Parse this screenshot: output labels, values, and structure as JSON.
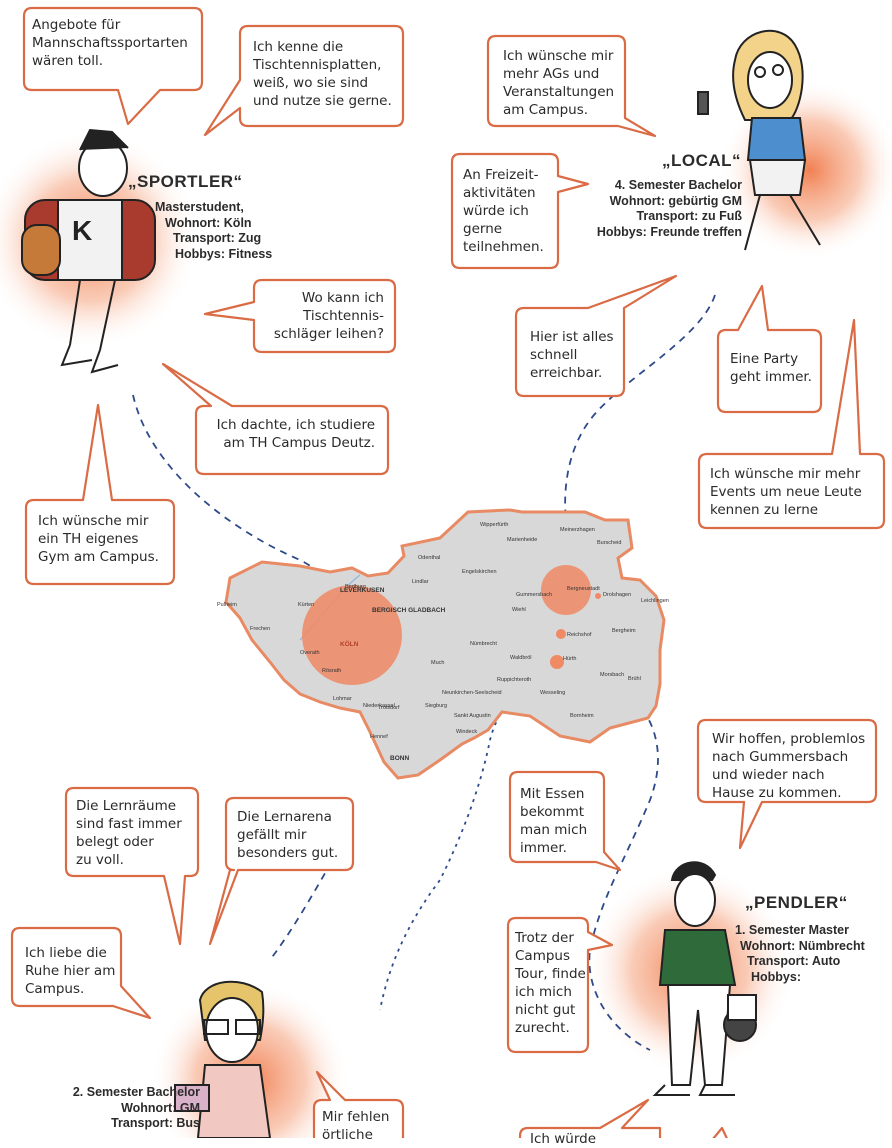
{
  "colors": {
    "bubble_border": "#d96b45",
    "glow": "#f07a4a",
    "map_fill": "#d8d8d8",
    "map_border": "#e88a63",
    "dashes": "#2e4a8a",
    "hotspot": "#f08a65"
  },
  "personas": {
    "sportler": {
      "name": "„SPORTLER“",
      "info": [
        "Masterstudent,",
        "Wohnort: Köln",
        "Transport: Zug",
        "Hobbys: Fitness"
      ]
    },
    "local": {
      "name": "„LOCAL“",
      "info": [
        "4. Semester Bachelor",
        "Wohnort: gebürtig GM",
        "Transport: zu Fuß",
        "Hobbys: Freunde treffen"
      ]
    },
    "pendler": {
      "name": "„PENDLER“",
      "info": [
        "1. Semester Master",
        "Wohnort: Nümbrecht",
        "Transport: Auto",
        "Hobbys:"
      ]
    },
    "student_bus": {
      "info": [
        "2. Semester Bachelor",
        "Wohnort: GM",
        "Transport: Bus"
      ]
    }
  },
  "bubbles": {
    "b1": "Angebote für\nMannschaftssportarten\nwären toll.",
    "b2": "Ich kenne die\nTischtennisplatten,\nweiß, wo sie sind\nund nutze sie gerne.",
    "b3": "Wo kann ich\nTischtennis-\nschläger leihen?",
    "b4": "Ich dachte, ich studiere\nam TH Campus Deutz.",
    "b5": "Ich wünsche mir\nein TH eigenes\nGym am Campus.",
    "b6": "Ich wünsche mir\nmehr AGs und\nVeranstaltungen\nam Campus.",
    "b7": "An Freizeit-\naktivitäten\nwürde ich\ngerne\nteilnehmen.",
    "b8": "Hier ist alles\nschnell\nerreichbar.",
    "b9": "Eine Party\ngeht immer.",
    "b10": "Ich wünsche mir mehr\nEvents um neue Leute\nkennen zu lerne",
    "b11": "Wir hoffen, problemlos\nnach Gummersbach\nund wieder nach\nHause zu kommen.",
    "b12": "Mit Essen\nbekommt\nman mich\nimmer.",
    "b13": "Trotz der\nCampus\nTour, finde\nich mich\nnicht gut\nzurecht.",
    "b14": "Die Lernräume\nsind fast immer\nbelegt oder\nzu voll.",
    "b15": "Die Lernarena\ngefällt mir\nbesonders gut.",
    "b16": "Ich liebe die\nRuhe hier am\nCampus.",
    "b17": "Mir fehlen\nörtliche",
    "b18": "Ich würde"
  },
  "map": {
    "cities": [
      "Wipperfürth",
      "Marienheide",
      "Meinerzhagen",
      "Burscheid",
      "Odenthal",
      "Lindlar",
      "Gummersbach",
      "Bergneustadt",
      "Drolshagen",
      "Leichlingen",
      "Bedburg",
      "Pulheim",
      "Kürten",
      "Engelskirchen",
      "Wiehl",
      "Reichshof",
      "Bergheim",
      "Frechen",
      "Overath",
      "Nümbrecht",
      "Hürth",
      "Rösrath",
      "Much",
      "Waldbröl",
      "Morsbach",
      "Brühl",
      "Lohmar",
      "Neunkirchen-Seelscheid",
      "Ruppichteroth",
      "Wesseling",
      "Niederkassel",
      "Troisdorf",
      "Siegburg",
      "Sankt Augustin",
      "Windeck",
      "Bornheim",
      "Hennef"
    ],
    "big_cities": [
      "LEVERKUSEN",
      "BERGISCH GLADBACH",
      "KÖLN",
      "BONN"
    ]
  }
}
